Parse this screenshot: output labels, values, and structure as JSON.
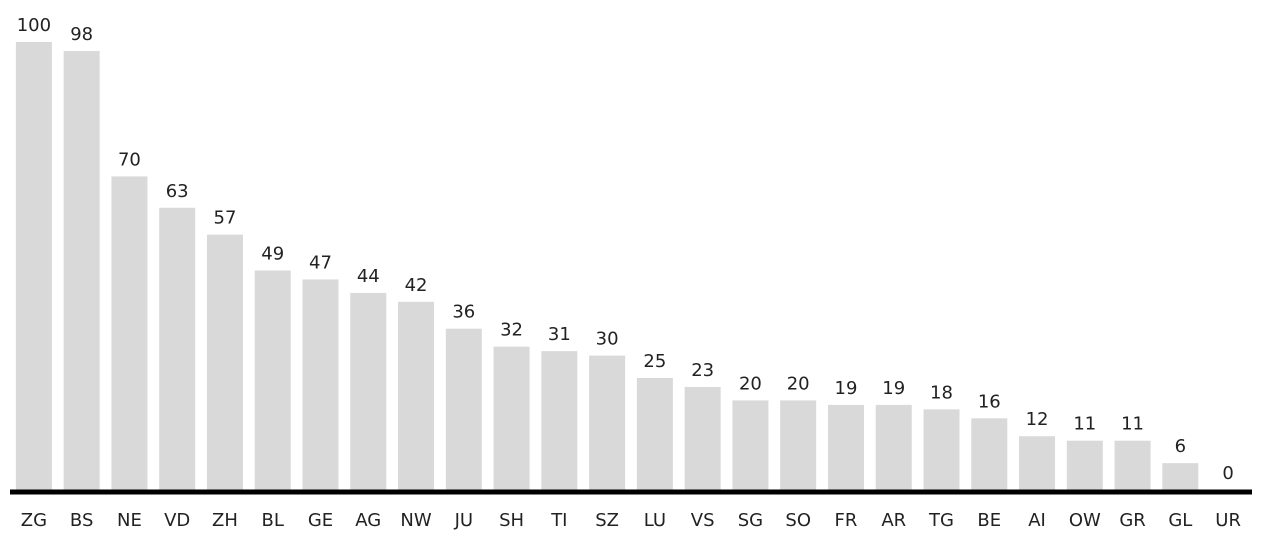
{
  "chart_data": {
    "type": "bar",
    "categories": [
      "ZG",
      "BS",
      "NE",
      "VD",
      "ZH",
      "BL",
      "GE",
      "AG",
      "NW",
      "JU",
      "SH",
      "TI",
      "SZ",
      "LU",
      "VS",
      "SG",
      "SO",
      "FR",
      "AR",
      "TG",
      "BE",
      "AI",
      "OW",
      "GR",
      "GL",
      "UR"
    ],
    "values": [
      100,
      98,
      70,
      63,
      57,
      49,
      47,
      44,
      42,
      36,
      32,
      31,
      30,
      25,
      23,
      20,
      20,
      19,
      19,
      18,
      16,
      12,
      11,
      11,
      6,
      0
    ],
    "color": "#d9d9d9"
  }
}
